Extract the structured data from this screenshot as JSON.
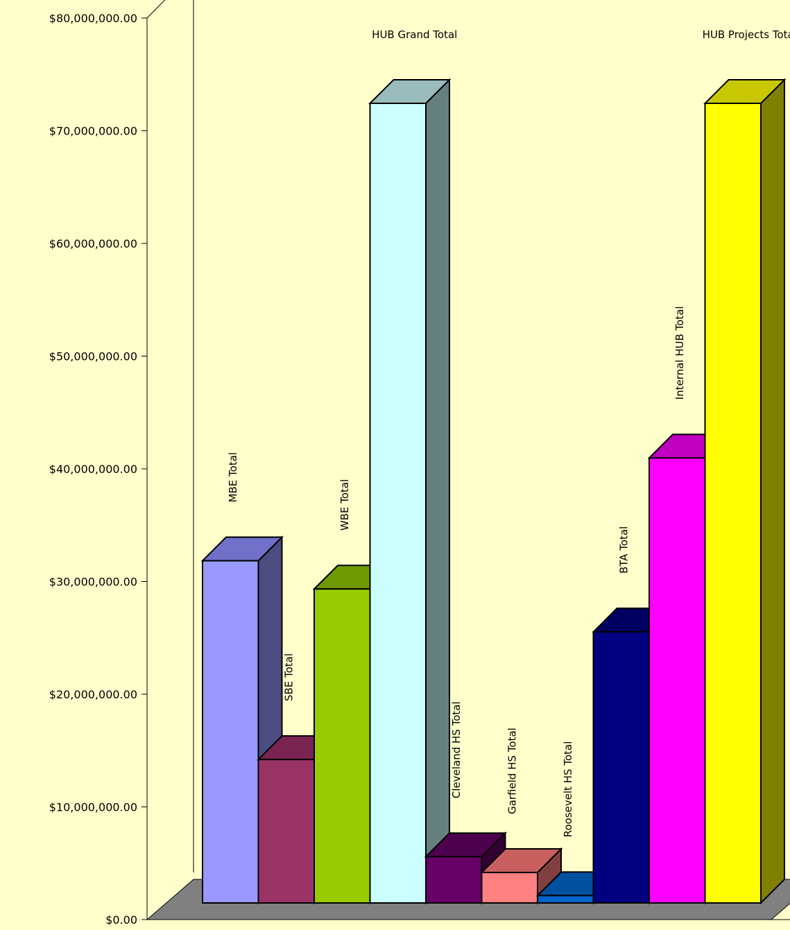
{
  "chart_data": {
    "type": "bar",
    "style": "3d-column",
    "background_color": "#FFFFCC",
    "floor_color": "#808080",
    "ylim": [
      0,
      80000000
    ],
    "y_ticks": [
      {
        "value": 0,
        "label": "$0.00"
      },
      {
        "value": 10000000,
        "label": "$10,000,000.00"
      },
      {
        "value": 20000000,
        "label": "$20,000,000.00"
      },
      {
        "value": 30000000,
        "label": "$30,000,000.00"
      },
      {
        "value": 40000000,
        "label": "$40,000,000.00"
      },
      {
        "value": 50000000,
        "label": "$50,000,000.00"
      },
      {
        "value": 60000000,
        "label": "$60,000,000.00"
      },
      {
        "value": 70000000,
        "label": "$70,000,000.00"
      },
      {
        "value": 80000000,
        "label": "$80,000,000.00"
      }
    ],
    "bars": [
      {
        "label": "MBE Total",
        "value": 30300000,
        "color": "#9999FF",
        "top_color": "#7070C8",
        "side_color": "#4C4C80",
        "label_orientation": "vertical"
      },
      {
        "label": "SBE Total",
        "value": 12700000,
        "color": "#993366",
        "top_color": "#7A2452",
        "side_color": "#551A3A",
        "label_orientation": "vertical"
      },
      {
        "label": "WBE Total",
        "value": 27800000,
        "color": "#99CC00",
        "top_color": "#6E9900",
        "side_color": "#557700",
        "label_orientation": "vertical"
      },
      {
        "label": "HUB Grand Total",
        "value": 70800000,
        "color": "#CCFFFF",
        "top_color": "#99BBBB",
        "side_color": "#668080",
        "label_orientation": "horizontal"
      },
      {
        "label": "Cleveland HS Total",
        "value": 4100000,
        "color": "#660066",
        "top_color": "#4D004D",
        "side_color": "#330033",
        "label_orientation": "vertical"
      },
      {
        "label": "Garfield HS Total",
        "value": 2700000,
        "color": "#FF8080",
        "top_color": "#C86060",
        "side_color": "#804040",
        "label_orientation": "vertical"
      },
      {
        "label": "Roosevelt HS Total",
        "value": 650000,
        "color": "#0066CC",
        "top_color": "#0050A0",
        "side_color": "#003366",
        "label_orientation": "vertical"
      },
      {
        "label": "BTA Total",
        "value": 24000000,
        "color": "#000080",
        "top_color": "#000060",
        "side_color": "#000040",
        "label_orientation": "vertical"
      },
      {
        "label": "Internal HUB Total",
        "value": 39400000,
        "color": "#FF00FF",
        "top_color": "#C000C0",
        "side_color": "#800080",
        "label_orientation": "vertical"
      },
      {
        "label": "HUB Projects Total",
        "value": 70800000,
        "color": "#FFFF00",
        "top_color": "#C8C800",
        "side_color": "#808000",
        "label_orientation": "horizontal"
      }
    ]
  }
}
